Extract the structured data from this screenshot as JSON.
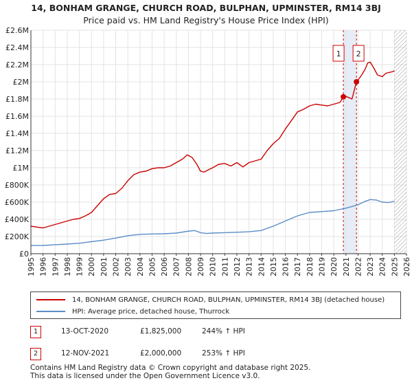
{
  "header": {
    "title_line1": "14, BONHAM GRANGE, CHURCH ROAD, BULPHAN, UPMINSTER, RM14 3BJ",
    "title_line2": "Price paid vs. HM Land Registry's House Price Index (HPI)"
  },
  "chart_data": {
    "type": "line",
    "title": "14, BONHAM GRANGE, CHURCH ROAD, BULPHAN, UPMINSTER, RM14 3BJ",
    "subtitle": "Price paid vs. HM Land Registry's House Price Index (HPI)",
    "xlim": [
      1995,
      2026
    ],
    "ylim": [
      0,
      2600000
    ],
    "x_ticks": [
      1995,
      1996,
      1997,
      1998,
      1999,
      2000,
      2001,
      2002,
      2003,
      2004,
      2005,
      2006,
      2007,
      2008,
      2009,
      2010,
      2011,
      2012,
      2013,
      2014,
      2015,
      2016,
      2017,
      2018,
      2019,
      2020,
      2021,
      2022,
      2023,
      2024,
      2025,
      2026
    ],
    "y_ticks": [
      0,
      200000,
      400000,
      600000,
      800000,
      1000000,
      1200000,
      1400000,
      1600000,
      1800000,
      2000000,
      2200000,
      2400000,
      2600000
    ],
    "y_tick_labels": [
      "£0",
      "£200K",
      "£400K",
      "£600K",
      "£800K",
      "£1M",
      "£1.2M",
      "£1.4M",
      "£1.6M",
      "£1.8M",
      "£2M",
      "£2.2M",
      "£2.4M",
      "£2.6M"
    ],
    "grid": true,
    "series": [
      {
        "name": "14, BONHAM GRANGE, CHURCH ROAD, BULPHAN, UPMINSTER, RM14 3BJ (detached house)",
        "color": "#cc0000",
        "x": [
          1995.0,
          1995.5,
          1996.0,
          1996.5,
          1997.0,
          1997.5,
          1998.0,
          1998.5,
          1999.0,
          1999.5,
          2000.0,
          2000.5,
          2001.0,
          2001.5,
          2002.0,
          2002.5,
          2003.0,
          2003.5,
          2004.0,
          2004.5,
          2005.0,
          2005.5,
          2006.0,
          2006.5,
          2007.0,
          2007.5,
          2007.9,
          2008.3,
          2008.7,
          2009.0,
          2009.3,
          2009.7,
          2010.0,
          2010.5,
          2011.0,
          2011.5,
          2012.0,
          2012.5,
          2013.0,
          2013.5,
          2014.0,
          2014.5,
          2015.0,
          2015.5,
          2016.0,
          2016.5,
          2017.0,
          2017.5,
          2018.0,
          2018.5,
          2019.0,
          2019.5,
          2020.0,
          2020.5,
          2020.79,
          2021.0,
          2021.5,
          2021.87,
          2022.0,
          2022.3,
          2022.6,
          2022.8,
          2023.0,
          2023.3,
          2023.6,
          2024.0,
          2024.3,
          2024.6,
          2024.9,
          2025.0
        ],
        "y": [
          320000,
          310000,
          300000,
          320000,
          340000,
          360000,
          380000,
          400000,
          410000,
          440000,
          480000,
          560000,
          640000,
          690000,
          700000,
          760000,
          850000,
          920000,
          950000,
          960000,
          990000,
          1000000,
          1000000,
          1020000,
          1060000,
          1100000,
          1150000,
          1120000,
          1040000,
          960000,
          950000,
          980000,
          1000000,
          1040000,
          1050000,
          1020000,
          1060000,
          1010000,
          1060000,
          1080000,
          1100000,
          1200000,
          1280000,
          1340000,
          1450000,
          1550000,
          1650000,
          1680000,
          1720000,
          1740000,
          1730000,
          1720000,
          1740000,
          1760000,
          1825000,
          1830000,
          1800000,
          2000000,
          2020000,
          2080000,
          2150000,
          2220000,
          2230000,
          2160000,
          2080000,
          2060000,
          2100000,
          2110000,
          2120000,
          2130000
        ]
      },
      {
        "name": "HPI: Average price, detached house, Thurrock",
        "color": "#5b8cc8",
        "x": [
          1995.0,
          1996.0,
          1997.0,
          1998.0,
          1999.0,
          2000.0,
          2001.0,
          2002.0,
          2003.0,
          2004.0,
          2005.0,
          2006.0,
          2007.0,
          2007.9,
          2008.5,
          2009.0,
          2009.5,
          2010.0,
          2011.0,
          2012.0,
          2013.0,
          2014.0,
          2015.0,
          2016.0,
          2017.0,
          2018.0,
          2019.0,
          2020.0,
          2021.0,
          2022.0,
          2022.6,
          2023.0,
          2023.5,
          2024.0,
          2024.5,
          2025.0
        ],
        "y": [
          95000,
          96000,
          105000,
          112000,
          122000,
          140000,
          158000,
          182000,
          210000,
          225000,
          230000,
          232000,
          240000,
          260000,
          270000,
          245000,
          235000,
          240000,
          245000,
          250000,
          255000,
          270000,
          320000,
          380000,
          440000,
          480000,
          490000,
          500000,
          530000,
          570000,
          610000,
          630000,
          625000,
          600000,
          595000,
          610000
        ]
      }
    ],
    "annotations": [
      {
        "label": "1",
        "x": 2020.79,
        "y": 1825000
      },
      {
        "label": "2",
        "x": 2021.87,
        "y": 2000000
      }
    ],
    "shaded_band": [
      2020.79,
      2021.87
    ],
    "hatched_after": 2025.0
  },
  "legend": {
    "items": [
      {
        "label": "14, BONHAM GRANGE, CHURCH ROAD, BULPHAN, UPMINSTER, RM14 3BJ (detached house)",
        "color": "#cc0000"
      },
      {
        "label": "HPI: Average price, detached house, Thurrock",
        "color": "#5b8cc8"
      }
    ]
  },
  "sales": [
    {
      "num": "1",
      "date": "13-OCT-2020",
      "price": "£1,825,000",
      "hpi": "244% ↑ HPI"
    },
    {
      "num": "2",
      "date": "12-NOV-2021",
      "price": "£2,000,000",
      "hpi": "253% ↑ HPI"
    }
  ],
  "footer": {
    "line1": "Contains HM Land Registry data © Crown copyright and database right 2025.",
    "line2": "This data is licensed under the Open Government Licence v3.0."
  }
}
